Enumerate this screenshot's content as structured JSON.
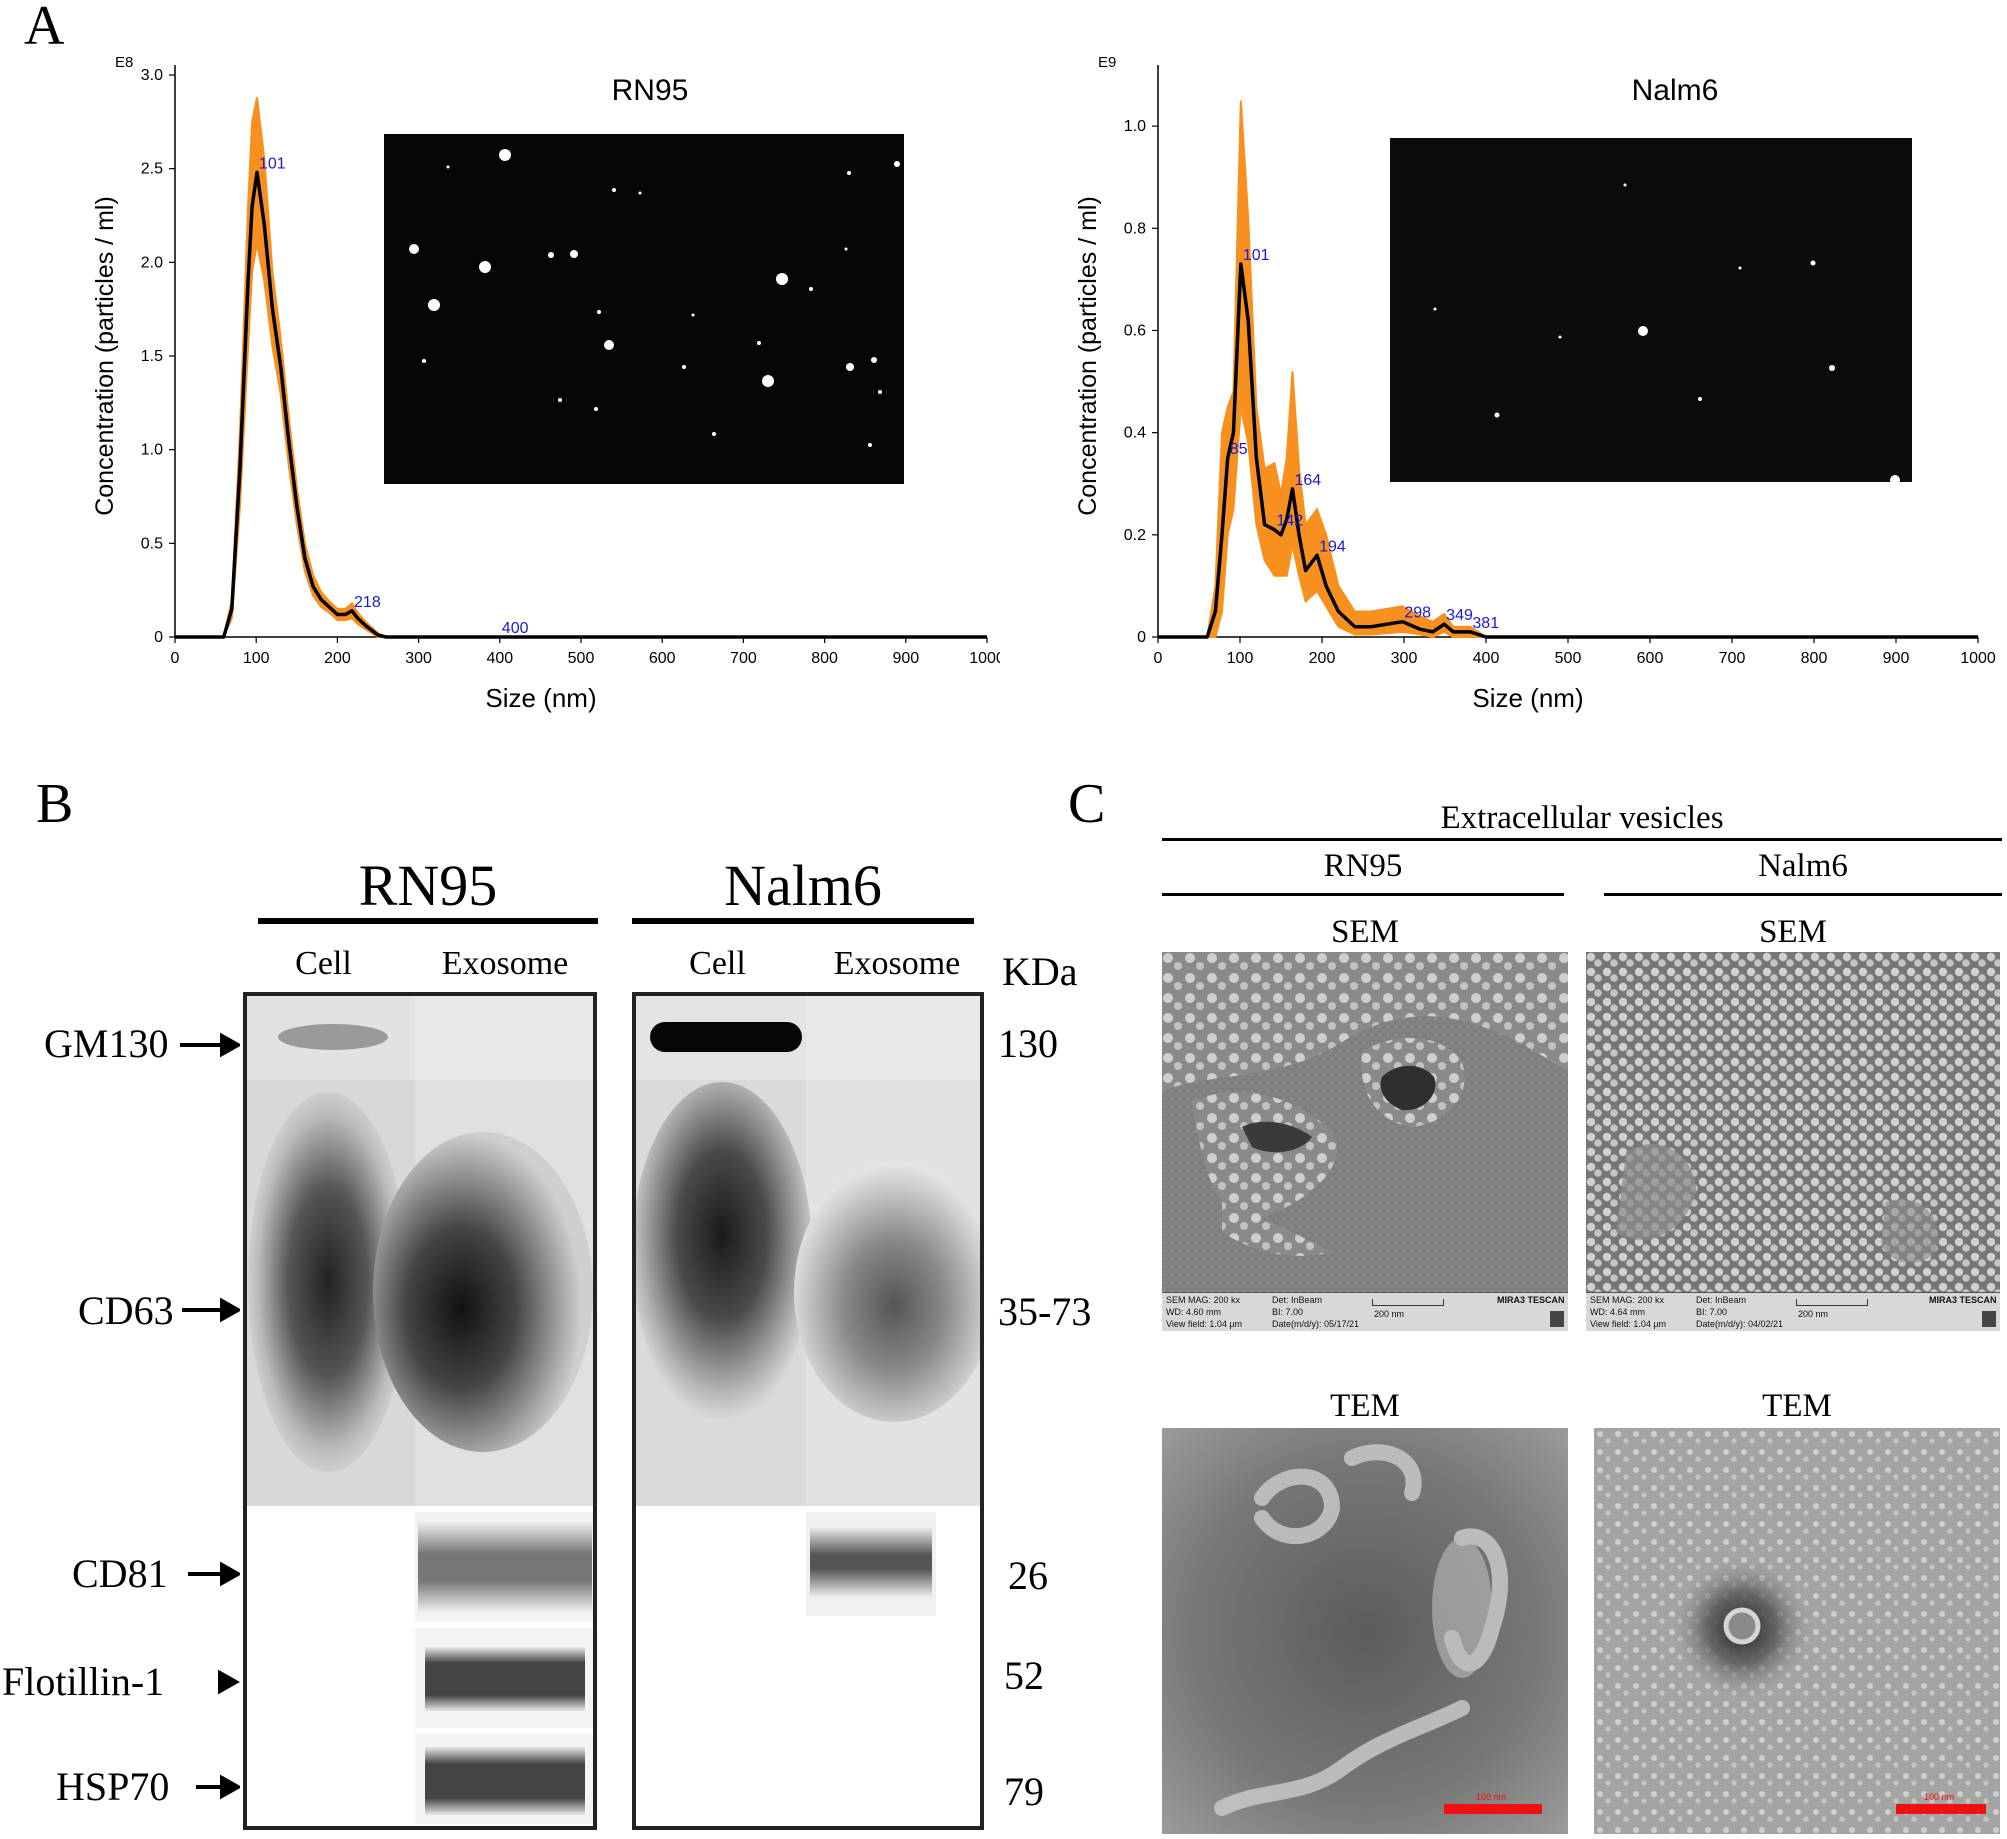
{
  "panel_letters": {
    "a": "A",
    "b": "B",
    "c": "C"
  },
  "chart_data": [
    {
      "type": "area",
      "title": "RN95",
      "exponent_label": "E8",
      "xlabel": "Size (nm)",
      "ylabel": "Concentration (particles / ml)",
      "xlim": [
        0,
        1000
      ],
      "ylim": [
        0,
        3.0
      ],
      "x_ticks": [
        "0",
        "100",
        "200",
        "300",
        "400",
        "500",
        "600",
        "700",
        "800",
        "900",
        "1000"
      ],
      "y_ticks": [
        "0",
        "0.5",
        "1.0",
        "1.5",
        "2.0",
        "2.5",
        "3.0"
      ],
      "peak_labels": [
        {
          "x": 101,
          "y": 2.48,
          "text": "101"
        },
        {
          "x": 218,
          "y": 0.14,
          "text": "218"
        },
        {
          "x": 400,
          "y": 0.0,
          "text": "400"
        }
      ],
      "series": [
        {
          "name": "mean",
          "color": "#000000",
          "x": [
            0,
            60,
            70,
            80,
            90,
            95,
            101,
            110,
            120,
            130,
            140,
            150,
            160,
            170,
            180,
            190,
            200,
            210,
            218,
            225,
            235,
            250,
            260,
            300,
            1000
          ],
          "y": [
            0,
            0.0,
            0.15,
            0.9,
            1.9,
            2.3,
            2.48,
            2.2,
            1.75,
            1.45,
            1.05,
            0.7,
            0.42,
            0.27,
            0.2,
            0.16,
            0.12,
            0.12,
            0.14,
            0.1,
            0.06,
            0.01,
            0.0,
            0.0,
            0.0
          ]
        },
        {
          "name": "error",
          "color": "#F7901E",
          "x": [
            0,
            60,
            70,
            80,
            90,
            95,
            101,
            110,
            120,
            130,
            140,
            150,
            160,
            170,
            180,
            190,
            200,
            210,
            218,
            225,
            235,
            250,
            260,
            300,
            1000
          ],
          "upper": [
            0,
            0.0,
            0.2,
            1.1,
            2.3,
            2.75,
            2.88,
            2.55,
            1.95,
            1.6,
            1.18,
            0.8,
            0.5,
            0.33,
            0.24,
            0.19,
            0.15,
            0.15,
            0.18,
            0.13,
            0.08,
            0.02,
            0.0,
            0.0,
            0.0
          ],
          "lower": [
            0,
            0.0,
            0.1,
            0.7,
            1.55,
            1.95,
            2.1,
            1.9,
            1.55,
            1.3,
            0.92,
            0.6,
            0.35,
            0.22,
            0.16,
            0.13,
            0.09,
            0.09,
            0.1,
            0.07,
            0.04,
            0.0,
            0.0,
            0.0,
            0.0
          ]
        }
      ]
    },
    {
      "type": "area",
      "title": "Nalm6",
      "exponent_label": "E9",
      "xlabel": "Size (nm)",
      "ylabel": "Concentration (particles / ml)",
      "xlim": [
        0,
        1000
      ],
      "ylim": [
        0,
        1.1
      ],
      "x_ticks": [
        "0",
        "100",
        "200",
        "300",
        "400",
        "500",
        "600",
        "700",
        "800",
        "900",
        "1000"
      ],
      "y_ticks": [
        "0",
        "0.2",
        "0.4",
        "0.6",
        "0.8",
        "1.0"
      ],
      "peak_labels": [
        {
          "x": 85,
          "y": 0.35,
          "text": "85"
        },
        {
          "x": 101,
          "y": 0.73,
          "text": "101"
        },
        {
          "x": 142,
          "y": 0.21,
          "text": "142"
        },
        {
          "x": 164,
          "y": 0.29,
          "text": "164"
        },
        {
          "x": 194,
          "y": 0.16,
          "text": "194"
        },
        {
          "x": 298,
          "y": 0.03,
          "text": "298"
        },
        {
          "x": 349,
          "y": 0.025,
          "text": "349"
        },
        {
          "x": 381,
          "y": 0.01,
          "text": "381"
        }
      ],
      "series": [
        {
          "name": "mean",
          "color": "#000000",
          "x": [
            0,
            60,
            70,
            78,
            85,
            92,
            101,
            110,
            120,
            130,
            142,
            150,
            157,
            164,
            172,
            180,
            194,
            205,
            220,
            240,
            260,
            298,
            320,
            335,
            349,
            360,
            381,
            400,
            1000
          ],
          "y": [
            0,
            0.0,
            0.05,
            0.2,
            0.35,
            0.4,
            0.73,
            0.62,
            0.35,
            0.22,
            0.21,
            0.2,
            0.23,
            0.29,
            0.2,
            0.13,
            0.16,
            0.1,
            0.05,
            0.02,
            0.02,
            0.03,
            0.015,
            0.01,
            0.025,
            0.01,
            0.01,
            0.0,
            0.0
          ]
        },
        {
          "name": "error",
          "color": "#F7901E",
          "x": [
            0,
            60,
            70,
            78,
            85,
            92,
            101,
            110,
            120,
            130,
            142,
            150,
            157,
            164,
            172,
            180,
            194,
            205,
            220,
            240,
            260,
            298,
            320,
            335,
            349,
            360,
            381,
            400,
            1000
          ],
          "upper": [
            0,
            0.0,
            0.1,
            0.4,
            0.45,
            0.48,
            1.05,
            0.82,
            0.45,
            0.33,
            0.34,
            0.28,
            0.35,
            0.52,
            0.33,
            0.22,
            0.25,
            0.2,
            0.1,
            0.05,
            0.05,
            0.06,
            0.04,
            0.03,
            0.045,
            0.02,
            0.02,
            0.0,
            0.0
          ],
          "lower": [
            0,
            0.0,
            0.0,
            0.05,
            0.2,
            0.25,
            0.45,
            0.38,
            0.22,
            0.15,
            0.12,
            0.12,
            0.12,
            0.18,
            0.12,
            0.07,
            0.09,
            0.06,
            0.02,
            0.005,
            0.005,
            0.01,
            0.005,
            0.0,
            0.01,
            0.0,
            0.0,
            0.0,
            0.0
          ]
        }
      ]
    }
  ],
  "western_blot": {
    "groups": [
      {
        "title": "RN95",
        "lanes": [
          "Cell",
          "Exosome"
        ]
      },
      {
        "title": "Nalm6",
        "lanes": [
          "Cell",
          "Exosome"
        ]
      }
    ],
    "kda_header": "KDa",
    "markers": [
      {
        "name": "GM130",
        "kda": "130"
      },
      {
        "name": "CD63",
        "kda": "35-73"
      },
      {
        "name": "CD81",
        "kda": "26"
      },
      {
        "name": "Flotillin-1",
        "kda": "52"
      },
      {
        "name": "HSP70",
        "kda": "79"
      }
    ]
  },
  "microscopy": {
    "header": "Extracellular vesicles",
    "columns": [
      "RN95",
      "Nalm6"
    ],
    "sem_label": "SEM",
    "tem_label": "TEM",
    "sem_info": [
      {
        "mag": "SEM MAG: 200 kx",
        "det": "Det: InBeam",
        "wd": "WD: 4.60 mm",
        "bi": "BI: 7.00",
        "fov": "View field: 1.04 µm",
        "date": "Date(m/d/y): 05/17/21",
        "scale": "200 nm",
        "brand": "MIRA3 TESCAN"
      },
      {
        "mag": "SEM MAG: 200 kx",
        "det": "Det: InBeam",
        "wd": "WD: 4.64 mm",
        "bi": "BI: 7.00",
        "fov": "View field: 1.04 µm",
        "date": "Date(m/d/y): 04/02/21",
        "scale": "200 nm",
        "brand": "MIRA3 TESCAN"
      }
    ],
    "tem_scale": "100 nm"
  }
}
